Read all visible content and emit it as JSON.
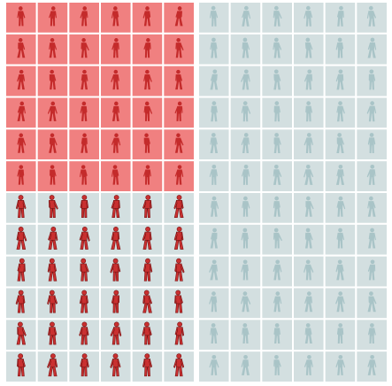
{
  "colors": {
    "background": "#ffffff",
    "cell_fill": "#d3dfe0",
    "cell_divider": "#ffffff",
    "highlight_fill": "#f08080",
    "figure_on_highlight": "#c42b2b",
    "figure_active": "#c93030",
    "figure_active_outline": "#7a1414",
    "figure_muted": "#a9c4c7"
  },
  "grid": {
    "panels": 2,
    "columns_per_panel": 6,
    "rows": 12,
    "highlighted_block": {
      "panel": 0,
      "rows": [
        0,
        5
      ],
      "columns": [
        0,
        5
      ]
    },
    "active_block": {
      "panel": 0,
      "rows": [
        6,
        11
      ],
      "columns": [
        0,
        5
      ]
    },
    "muted_block": {
      "panel": 1,
      "rows": [
        0,
        11
      ],
      "columns": [
        0,
        5
      ]
    }
  },
  "icons": {
    "cell_icon": "person-silhouette-icon"
  }
}
